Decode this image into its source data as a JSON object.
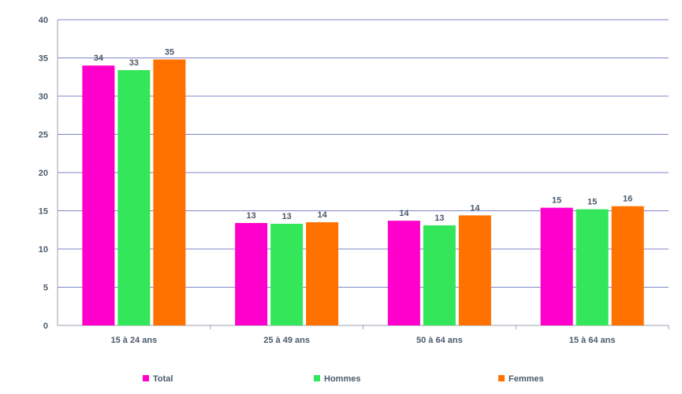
{
  "chart_data": {
    "type": "bar",
    "categories": [
      "15 à 24 ans",
      "25 à 49 ans",
      "50 à 64 ans",
      "15 à 64 ans"
    ],
    "series": [
      {
        "name": "Total",
        "values": [
          34,
          13.4,
          13.7,
          15.4
        ],
        "labels": [
          "34",
          "13",
          "14",
          "15"
        ],
        "color": "#ff00cc"
      },
      {
        "name": "Hommes",
        "values": [
          33.4,
          13.3,
          13.1,
          15.2
        ],
        "labels": [
          "33",
          "13",
          "13",
          "15"
        ],
        "color": "#33e65a"
      },
      {
        "name": "Femmes",
        "values": [
          34.8,
          13.5,
          14.4,
          15.6
        ],
        "labels": [
          "35",
          "14",
          "14",
          "16"
        ],
        "color": "#ff7200"
      }
    ],
    "ylim": [
      0,
      40
    ],
    "yticks": [
      0,
      5,
      10,
      15,
      20,
      25,
      30,
      35,
      40
    ],
    "grid": true,
    "legend_position": "bottom"
  }
}
